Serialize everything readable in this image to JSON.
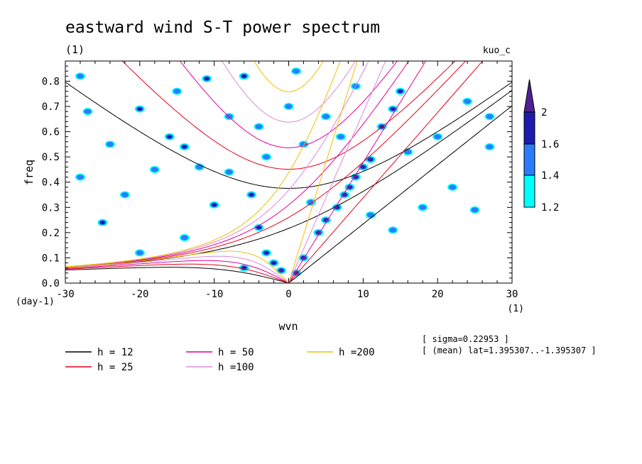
{
  "chart_data": {
    "type": "heatmap",
    "title": "eastward wind S-T power spectrum",
    "subtitle": "(1)",
    "run_label": "kuo_c",
    "xlabel": "wvn",
    "ylabel": "freq",
    "x_unit": "(1)",
    "y_unit": "(day-1)",
    "xlim": [
      -30,
      30
    ],
    "ylim": [
      0,
      0.88
    ],
    "x_ticks": [
      -30,
      -20,
      -10,
      0,
      10,
      20,
      30
    ],
    "x_tick_labels": [
      "-30",
      "-20",
      "-10",
      "0",
      "10",
      "20",
      "30"
    ],
    "y_ticks": [
      0.0,
      0.1,
      0.2,
      0.3,
      0.4,
      0.5,
      0.6,
      0.7,
      0.8
    ],
    "y_tick_labels": [
      "0.0",
      "0.1",
      "0.2",
      "0.3",
      "0.4",
      "0.5",
      "0.6",
      "0.7",
      "0.8"
    ],
    "colorbar": {
      "levels": [
        1.2,
        1.4,
        1.6,
        2
      ],
      "level_labels": [
        "1.2",
        "1.4",
        "1.6",
        "2"
      ],
      "colors": [
        "#00ffff",
        "#2a7cff",
        "#1c1cae",
        "#502090"
      ]
    },
    "info": [
      "[ sigma=0.22953 ]",
      "[ (mean) lat=1.395307..-1.395307 ]"
    ],
    "dispersion_curves": [
      {
        "h": 12,
        "label": "h = 12",
        "color": "#000000"
      },
      {
        "h": 25,
        "label": "h = 25",
        "color": "#e8001a"
      },
      {
        "h": 50,
        "label": "h = 50",
        "color": "#e0009a"
      },
      {
        "h": 100,
        "label": "h =100",
        "color": "#dd88dd"
      },
      {
        "h": 200,
        "label": "h =200",
        "color": "#f0c000"
      }
    ],
    "spectral_peaks": [
      {
        "x": 1,
        "y": 0.04,
        "level": 2
      },
      {
        "x": 2,
        "y": 0.1,
        "level": 2
      },
      {
        "x": 4,
        "y": 0.2,
        "level": 2
      },
      {
        "x": 5,
        "y": 0.25,
        "level": 2
      },
      {
        "x": 6.5,
        "y": 0.3,
        "level": 2
      },
      {
        "x": 7.5,
        "y": 0.35,
        "level": 2
      },
      {
        "x": 8.2,
        "y": 0.38,
        "level": 2
      },
      {
        "x": 9,
        "y": 0.42,
        "level": 2
      },
      {
        "x": 10,
        "y": 0.46,
        "level": 2
      },
      {
        "x": 11,
        "y": 0.49,
        "level": 2
      },
      {
        "x": 12.5,
        "y": 0.62,
        "level": 1.6
      },
      {
        "x": 14,
        "y": 0.69,
        "level": 1.6
      },
      {
        "x": 15,
        "y": 0.76,
        "level": 1.6
      },
      {
        "x": -1,
        "y": 0.05,
        "level": 2
      },
      {
        "x": -2,
        "y": 0.08,
        "level": 1.6
      },
      {
        "x": -4,
        "y": 0.22,
        "level": 1.6
      },
      {
        "x": -5,
        "y": 0.35,
        "level": 1.6
      },
      {
        "x": -6,
        "y": 0.06,
        "level": 1.6
      },
      {
        "x": -3,
        "y": 0.12,
        "level": 1.6
      },
      {
        "x": -10,
        "y": 0.31,
        "level": 1.6
      },
      {
        "x": -16,
        "y": 0.58,
        "level": 1.6
      },
      {
        "x": -20,
        "y": 0.69,
        "level": 1.6
      },
      {
        "x": -25,
        "y": 0.24,
        "level": 1.6
      },
      {
        "x": -14,
        "y": 0.54,
        "level": 1.6
      },
      {
        "x": -6,
        "y": 0.82,
        "level": 1.6
      },
      {
        "x": -11,
        "y": 0.81,
        "level": 1.6
      },
      {
        "x": -27,
        "y": 0.68,
        "level": 1.4
      },
      {
        "x": -24,
        "y": 0.55,
        "level": 1.4
      },
      {
        "x": -18,
        "y": 0.45,
        "level": 1.4
      },
      {
        "x": -22,
        "y": 0.35,
        "level": 1.4
      },
      {
        "x": -12,
        "y": 0.46,
        "level": 1.4
      },
      {
        "x": -8,
        "y": 0.44,
        "level": 1.4
      },
      {
        "x": -3,
        "y": 0.5,
        "level": 1.4
      },
      {
        "x": 2,
        "y": 0.55,
        "level": 1.4
      },
      {
        "x": 5,
        "y": 0.66,
        "level": 1.4
      },
      {
        "x": 7,
        "y": 0.58,
        "level": 1.4
      },
      {
        "x": 16,
        "y": 0.52,
        "level": 1.4
      },
      {
        "x": 20,
        "y": 0.58,
        "level": 1.4
      },
      {
        "x": 24,
        "y": 0.72,
        "level": 1.4
      },
      {
        "x": 27,
        "y": 0.54,
        "level": 1.4
      },
      {
        "x": 18,
        "y": 0.3,
        "level": 1.4
      },
      {
        "x": 22,
        "y": 0.38,
        "level": 1.4
      },
      {
        "x": 11,
        "y": 0.27,
        "level": 1.4
      },
      {
        "x": 14,
        "y": 0.21,
        "level": 1.4
      },
      {
        "x": -28,
        "y": 0.82,
        "level": 1.4
      },
      {
        "x": -15,
        "y": 0.76,
        "level": 1.4
      },
      {
        "x": -8,
        "y": 0.66,
        "level": 1.4
      },
      {
        "x": 0,
        "y": 0.7,
        "level": 1.4
      },
      {
        "x": 9,
        "y": 0.78,
        "level": 1.4
      },
      {
        "x": -20,
        "y": 0.12,
        "level": 1.4
      },
      {
        "x": -14,
        "y": 0.18,
        "level": 1.4
      },
      {
        "x": -28,
        "y": 0.42,
        "level": 1.4
      },
      {
        "x": 3,
        "y": 0.32,
        "level": 1.4
      },
      {
        "x": 25,
        "y": 0.29,
        "level": 1.4
      },
      {
        "x": 27,
        "y": 0.66,
        "level": 1.4
      },
      {
        "x": 1,
        "y": 0.84,
        "level": 1.4
      },
      {
        "x": -4,
        "y": 0.62,
        "level": 1.4
      }
    ]
  }
}
